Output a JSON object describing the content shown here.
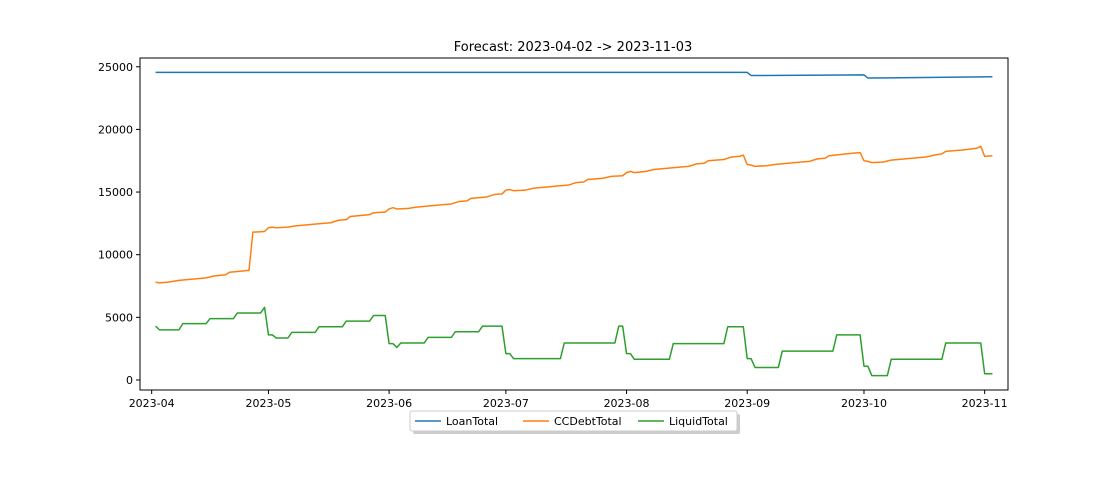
{
  "chart_data": {
    "type": "line",
    "title": "Forecast: 2023-04-02 -> 2023-11-03",
    "xlabel": "",
    "ylabel": "",
    "xlim": [
      "2023-03-29",
      "2023-11-07"
    ],
    "ylim": [
      -800,
      25700
    ],
    "x_ticks": [
      "2023-04-01",
      "2023-05-01",
      "2023-06-01",
      "2023-07-01",
      "2023-08-01",
      "2023-09-01",
      "2023-10-01",
      "2023-11-01"
    ],
    "x_tick_labels": [
      "2023-04",
      "2023-05",
      "2023-06",
      "2023-07",
      "2023-08",
      "2023-09",
      "2023-10",
      "2023-11"
    ],
    "y_ticks": [
      0,
      5000,
      10000,
      15000,
      20000,
      25000
    ],
    "y_tick_labels": [
      "0",
      "5000",
      "10000",
      "15000",
      "20000",
      "25000"
    ],
    "grid": false,
    "legend": {
      "placement": "bottom-center",
      "columns": 3
    },
    "series": [
      {
        "name": "LoanTotal",
        "color": "#1f77b4",
        "points": [
          [
            "2023-04-02",
            24550
          ],
          [
            "2023-09-01",
            24550
          ],
          [
            "2023-09-02",
            24300
          ],
          [
            "2023-10-01",
            24350
          ],
          [
            "2023-10-02",
            24100
          ],
          [
            "2023-11-03",
            24200
          ]
        ]
      },
      {
        "name": "CCDebtTotal",
        "color": "#ff7f0e",
        "points": [
          [
            "2023-04-02",
            7800
          ],
          [
            "2023-04-03",
            7750
          ],
          [
            "2023-04-05",
            7800
          ],
          [
            "2023-04-08",
            7950
          ],
          [
            "2023-04-15",
            8150
          ],
          [
            "2023-04-17",
            8300
          ],
          [
            "2023-04-20",
            8400
          ],
          [
            "2023-04-21",
            8600
          ],
          [
            "2023-04-26",
            8750
          ],
          [
            "2023-04-27",
            11800
          ],
          [
            "2023-04-30",
            11850
          ],
          [
            "2023-05-01",
            12150
          ],
          [
            "2023-05-02",
            12200
          ],
          [
            "2023-05-03",
            12150
          ],
          [
            "2023-05-06",
            12200
          ],
          [
            "2023-05-08",
            12300
          ],
          [
            "2023-05-15",
            12500
          ],
          [
            "2023-05-17",
            12550
          ],
          [
            "2023-05-19",
            12750
          ],
          [
            "2023-05-21",
            12800
          ],
          [
            "2023-05-22",
            13050
          ],
          [
            "2023-05-27",
            13200
          ],
          [
            "2023-05-28",
            13350
          ],
          [
            "2023-05-31",
            13400
          ],
          [
            "2023-06-01",
            13650
          ],
          [
            "2023-06-02",
            13750
          ],
          [
            "2023-06-03",
            13650
          ],
          [
            "2023-06-06",
            13700
          ],
          [
            "2023-06-08",
            13800
          ],
          [
            "2023-06-15",
            14000
          ],
          [
            "2023-06-17",
            14050
          ],
          [
            "2023-06-19",
            14250
          ],
          [
            "2023-06-21",
            14300
          ],
          [
            "2023-06-22",
            14500
          ],
          [
            "2023-06-26",
            14600
          ],
          [
            "2023-06-28",
            14800
          ],
          [
            "2023-06-30",
            14850
          ],
          [
            "2023-07-01",
            15150
          ],
          [
            "2023-07-02",
            15200
          ],
          [
            "2023-07-03",
            15100
          ],
          [
            "2023-07-06",
            15150
          ],
          [
            "2023-07-08",
            15300
          ],
          [
            "2023-07-15",
            15500
          ],
          [
            "2023-07-17",
            15550
          ],
          [
            "2023-07-19",
            15750
          ],
          [
            "2023-07-21",
            15800
          ],
          [
            "2023-07-22",
            16000
          ],
          [
            "2023-07-26",
            16100
          ],
          [
            "2023-07-28",
            16250
          ],
          [
            "2023-07-31",
            16300
          ],
          [
            "2023-08-01",
            16550
          ],
          [
            "2023-08-02",
            16650
          ],
          [
            "2023-08-03",
            16550
          ],
          [
            "2023-08-06",
            16650
          ],
          [
            "2023-08-08",
            16800
          ],
          [
            "2023-08-15",
            17000
          ],
          [
            "2023-08-17",
            17050
          ],
          [
            "2023-08-19",
            17250
          ],
          [
            "2023-08-21",
            17300
          ],
          [
            "2023-08-22",
            17500
          ],
          [
            "2023-08-26",
            17600
          ],
          [
            "2023-08-28",
            17800
          ],
          [
            "2023-08-30",
            17850
          ],
          [
            "2023-08-31",
            17950
          ],
          [
            "2023-09-01",
            17200
          ],
          [
            "2023-09-02",
            17150
          ],
          [
            "2023-09-03",
            17050
          ],
          [
            "2023-09-06",
            17100
          ],
          [
            "2023-09-08",
            17200
          ],
          [
            "2023-09-15",
            17400
          ],
          [
            "2023-09-17",
            17450
          ],
          [
            "2023-09-19",
            17650
          ],
          [
            "2023-09-21",
            17700
          ],
          [
            "2023-09-22",
            17900
          ],
          [
            "2023-09-28",
            18100
          ],
          [
            "2023-09-30",
            18150
          ],
          [
            "2023-10-01",
            17500
          ],
          [
            "2023-10-02",
            17450
          ],
          [
            "2023-10-03",
            17350
          ],
          [
            "2023-10-06",
            17400
          ],
          [
            "2023-10-08",
            17550
          ],
          [
            "2023-10-15",
            17750
          ],
          [
            "2023-10-17",
            17800
          ],
          [
            "2023-10-19",
            17950
          ],
          [
            "2023-10-21",
            18050
          ],
          [
            "2023-10-22",
            18250
          ],
          [
            "2023-10-26",
            18350
          ],
          [
            "2023-10-30",
            18500
          ],
          [
            "2023-10-31",
            18650
          ],
          [
            "2023-11-01",
            17850
          ],
          [
            "2023-11-03",
            17900
          ]
        ]
      },
      {
        "name": "LiquidTotal",
        "color": "#2ca02c",
        "points": [
          [
            "2023-04-02",
            4300
          ],
          [
            "2023-04-03",
            4000
          ],
          [
            "2023-04-08",
            4000
          ],
          [
            "2023-04-09",
            4500
          ],
          [
            "2023-04-15",
            4500
          ],
          [
            "2023-04-16",
            4900
          ],
          [
            "2023-04-22",
            4900
          ],
          [
            "2023-04-23",
            5350
          ],
          [
            "2023-04-29",
            5350
          ],
          [
            "2023-04-30",
            5800
          ],
          [
            "2023-05-01",
            3600
          ],
          [
            "2023-05-02",
            3600
          ],
          [
            "2023-05-03",
            3350
          ],
          [
            "2023-05-06",
            3350
          ],
          [
            "2023-05-07",
            3800
          ],
          [
            "2023-05-13",
            3800
          ],
          [
            "2023-05-14",
            4250
          ],
          [
            "2023-05-20",
            4250
          ],
          [
            "2023-05-21",
            4700
          ],
          [
            "2023-05-27",
            4700
          ],
          [
            "2023-05-28",
            5150
          ],
          [
            "2023-05-31",
            5150
          ],
          [
            "2023-06-01",
            2900
          ],
          [
            "2023-06-02",
            2900
          ],
          [
            "2023-06-03",
            2600
          ],
          [
            "2023-06-04",
            2950
          ],
          [
            "2023-06-10",
            2950
          ],
          [
            "2023-06-11",
            3400
          ],
          [
            "2023-06-17",
            3400
          ],
          [
            "2023-06-18",
            3850
          ],
          [
            "2023-06-24",
            3850
          ],
          [
            "2023-06-25",
            4300
          ],
          [
            "2023-06-30",
            4300
          ],
          [
            "2023-07-01",
            2100
          ],
          [
            "2023-07-02",
            2100
          ],
          [
            "2023-07-03",
            1700
          ],
          [
            "2023-07-15",
            1700
          ],
          [
            "2023-07-16",
            2950
          ],
          [
            "2023-07-29",
            2950
          ],
          [
            "2023-07-30",
            4300
          ],
          [
            "2023-07-31",
            4300
          ],
          [
            "2023-08-01",
            2100
          ],
          [
            "2023-08-02",
            2100
          ],
          [
            "2023-08-03",
            1650
          ],
          [
            "2023-08-12",
            1650
          ],
          [
            "2023-08-13",
            2900
          ],
          [
            "2023-08-26",
            2900
          ],
          [
            "2023-08-27",
            4250
          ],
          [
            "2023-08-31",
            4250
          ],
          [
            "2023-09-01",
            1700
          ],
          [
            "2023-09-02",
            1700
          ],
          [
            "2023-09-03",
            1000
          ],
          [
            "2023-09-09",
            1000
          ],
          [
            "2023-09-10",
            2300
          ],
          [
            "2023-09-23",
            2300
          ],
          [
            "2023-09-24",
            3600
          ],
          [
            "2023-09-30",
            3600
          ],
          [
            "2023-10-01",
            1100
          ],
          [
            "2023-10-02",
            1100
          ],
          [
            "2023-10-03",
            350
          ],
          [
            "2023-10-07",
            350
          ],
          [
            "2023-10-08",
            1650
          ],
          [
            "2023-10-21",
            1650
          ],
          [
            "2023-10-22",
            2950
          ],
          [
            "2023-10-31",
            2950
          ],
          [
            "2023-11-01",
            500
          ],
          [
            "2023-11-03",
            500
          ]
        ]
      }
    ]
  }
}
